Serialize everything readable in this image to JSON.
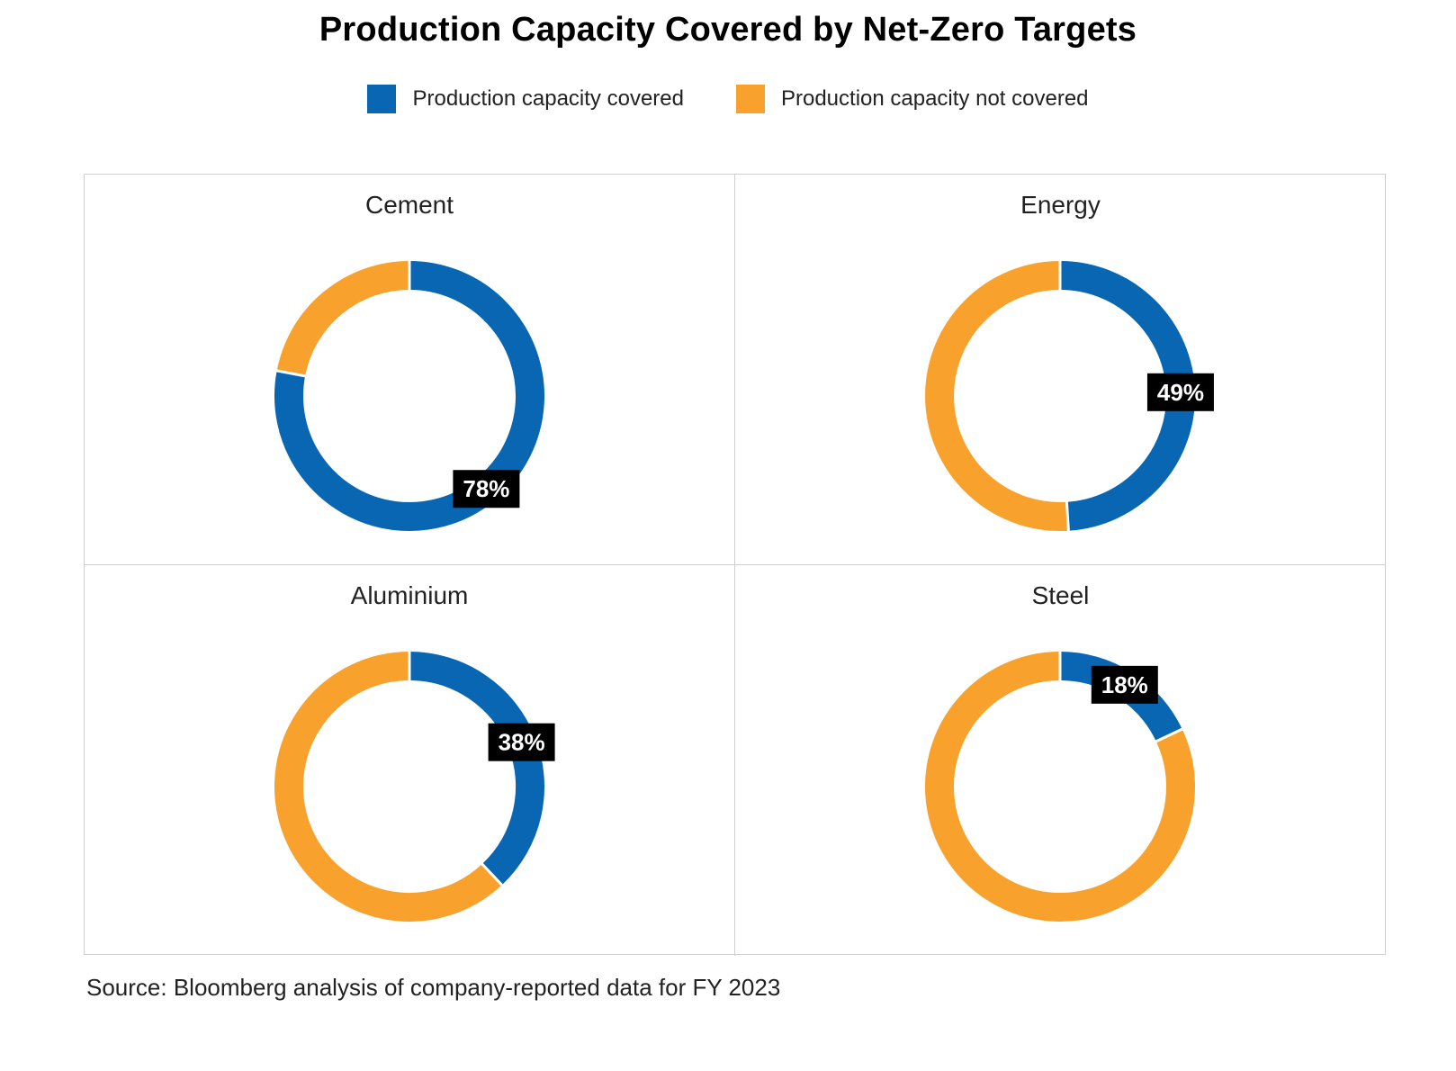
{
  "title": "Production Capacity Covered by Net-Zero Targets",
  "legend": [
    {
      "label": "Production capacity covered",
      "color": "#0866b3"
    },
    {
      "label": "Production capacity not covered",
      "color": "#f8a12d"
    }
  ],
  "source": "Source: Bloomberg analysis of company-reported data for FY 2023",
  "chart_data": [
    {
      "type": "pie",
      "title": "Cement",
      "categories": [
        "Production capacity covered",
        "Production capacity not covered"
      ],
      "values": [
        78,
        22
      ],
      "data_label": "78%",
      "colors": [
        "#0866b3",
        "#f8a12d"
      ]
    },
    {
      "type": "pie",
      "title": "Energy",
      "categories": [
        "Production capacity covered",
        "Production capacity not covered"
      ],
      "values": [
        49,
        51
      ],
      "data_label": "49%",
      "colors": [
        "#0866b3",
        "#f8a12d"
      ]
    },
    {
      "type": "pie",
      "title": "Aluminium",
      "categories": [
        "Production capacity covered",
        "Production capacity not covered"
      ],
      "values": [
        38,
        62
      ],
      "data_label": "38%",
      "colors": [
        "#0866b3",
        "#f8a12d"
      ]
    },
    {
      "type": "pie",
      "title": "Steel",
      "categories": [
        "Production capacity covered",
        "Production capacity not covered"
      ],
      "values": [
        18,
        82
      ],
      "data_label": "18%",
      "colors": [
        "#0866b3",
        "#f8a12d"
      ]
    }
  ]
}
